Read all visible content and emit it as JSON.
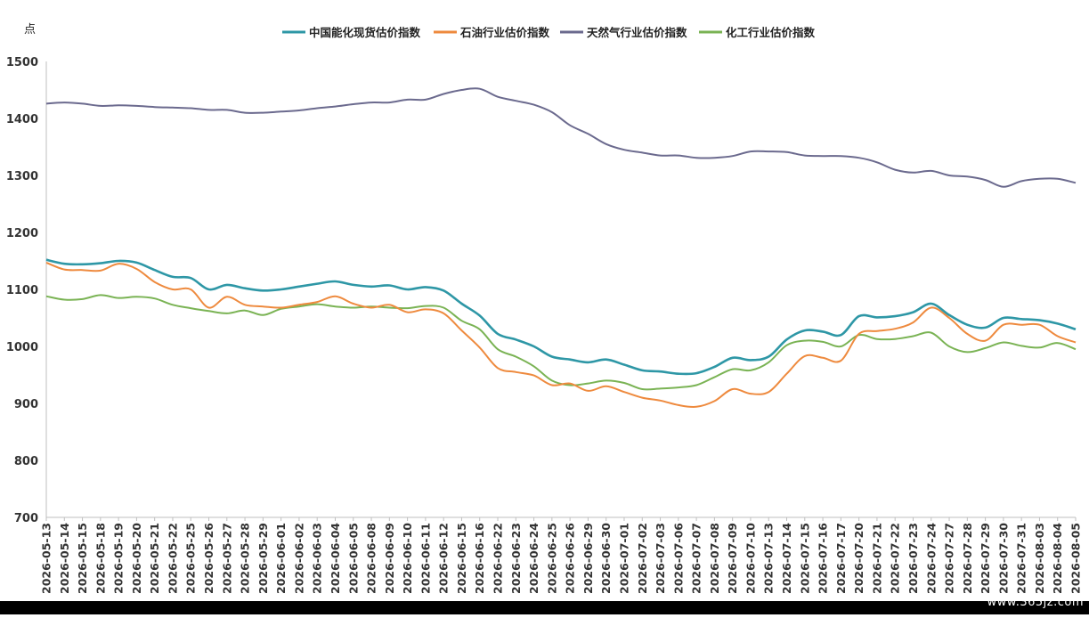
{
  "watermark": "www.365jz.com",
  "chart_data": {
    "type": "line",
    "ylabel": "点",
    "ylim": [
      700,
      1500
    ],
    "yticks": [
      700,
      800,
      900,
      1000,
      1100,
      1200,
      1300,
      1400,
      1500
    ],
    "grid": false,
    "legend_position": "top",
    "categories": [
      "2026-05-13",
      "2026-05-14",
      "2026-05-15",
      "2026-05-18",
      "2026-05-19",
      "2026-05-20",
      "2026-05-21",
      "2026-05-22",
      "2026-05-25",
      "2026-05-26",
      "2026-05-27",
      "2026-05-28",
      "2026-05-29",
      "2026-06-01",
      "2026-06-02",
      "2026-06-03",
      "2026-06-04",
      "2026-06-05",
      "2026-06-08",
      "2026-06-09",
      "2026-06-10",
      "2026-06-11",
      "2026-06-12",
      "2026-06-15",
      "2026-06-16",
      "2026-06-22",
      "2026-06-23",
      "2026-06-24",
      "2026-06-25",
      "2026-06-26",
      "2026-06-29",
      "2026-06-30",
      "2026-07-01",
      "2026-07-02",
      "2026-07-03",
      "2026-07-06",
      "2026-07-07",
      "2026-07-08",
      "2026-07-09",
      "2026-07-10",
      "2026-07-13",
      "2026-07-14",
      "2026-07-15",
      "2026-07-16",
      "2026-07-17",
      "2026-07-20",
      "2026-07-21",
      "2026-07-22",
      "2026-07-23",
      "2026-07-24",
      "2026-07-27",
      "2026-07-28",
      "2026-07-29",
      "2026-07-30",
      "2026-07-31",
      "2026-08-03",
      "2026-08-04",
      "2026-08-05"
    ],
    "series": [
      {
        "name": "中国能化现货估价指数",
        "color": "#2e97a6",
        "values": [
          1152,
          1145,
          1144,
          1146,
          1150,
          1147,
          1134,
          1122,
          1120,
          1100,
          1108,
          1102,
          1098,
          1100,
          1105,
          1110,
          1114,
          1108,
          1105,
          1107,
          1100,
          1104,
          1098,
          1075,
          1054,
          1022,
          1012,
          1000,
          982,
          977,
          972,
          977,
          968,
          958,
          956,
          952,
          953,
          964,
          980,
          976,
          982,
          1012,
          1028,
          1026,
          1020,
          1053,
          1051,
          1053,
          1060,
          1075,
          1055,
          1038,
          1033,
          1050,
          1048,
          1046,
          1040,
          1030
        ]
      },
      {
        "name": "石油行业估价指数",
        "color": "#ee8a3e",
        "values": [
          1147,
          1135,
          1134,
          1133,
          1145,
          1136,
          1113,
          1100,
          1100,
          1068,
          1087,
          1073,
          1070,
          1068,
          1073,
          1078,
          1088,
          1075,
          1068,
          1073,
          1060,
          1065,
          1058,
          1028,
          998,
          962,
          955,
          949,
          932,
          935,
          922,
          930,
          920,
          910,
          905,
          897,
          894,
          904,
          925,
          917,
          920,
          952,
          983,
          980,
          975,
          1022,
          1027,
          1031,
          1042,
          1068,
          1050,
          1022,
          1010,
          1038,
          1038,
          1038,
          1018,
          1007
        ]
      },
      {
        "name": "天然气行业估价指数",
        "color": "#6b6a8e",
        "values": [
          1426,
          1428,
          1426,
          1422,
          1423,
          1422,
          1420,
          1419,
          1418,
          1415,
          1415,
          1410,
          1410,
          1412,
          1414,
          1418,
          1421,
          1425,
          1428,
          1428,
          1433,
          1433,
          1443,
          1450,
          1452,
          1438,
          1431,
          1424,
          1411,
          1388,
          1373,
          1355,
          1345,
          1340,
          1335,
          1335,
          1331,
          1331,
          1334,
          1342,
          1342,
          1341,
          1335,
          1334,
          1334,
          1331,
          1323,
          1310,
          1305,
          1308,
          1300,
          1298,
          1292,
          1280,
          1290,
          1294,
          1294,
          1287
        ]
      },
      {
        "name": "化工行业估价指数",
        "color": "#7ab354",
        "values": [
          1088,
          1082,
          1083,
          1090,
          1085,
          1087,
          1084,
          1073,
          1067,
          1062,
          1058,
          1063,
          1055,
          1066,
          1070,
          1074,
          1070,
          1068,
          1070,
          1068,
          1067,
          1071,
          1068,
          1045,
          1030,
          995,
          982,
          965,
          940,
          932,
          935,
          940,
          936,
          925,
          926,
          928,
          932,
          946,
          960,
          958,
          972,
          1002,
          1010,
          1008,
          1000,
          1020,
          1013,
          1013,
          1018,
          1024,
          1000,
          990,
          997,
          1007,
          1001,
          998,
          1006,
          995
        ]
      }
    ]
  }
}
